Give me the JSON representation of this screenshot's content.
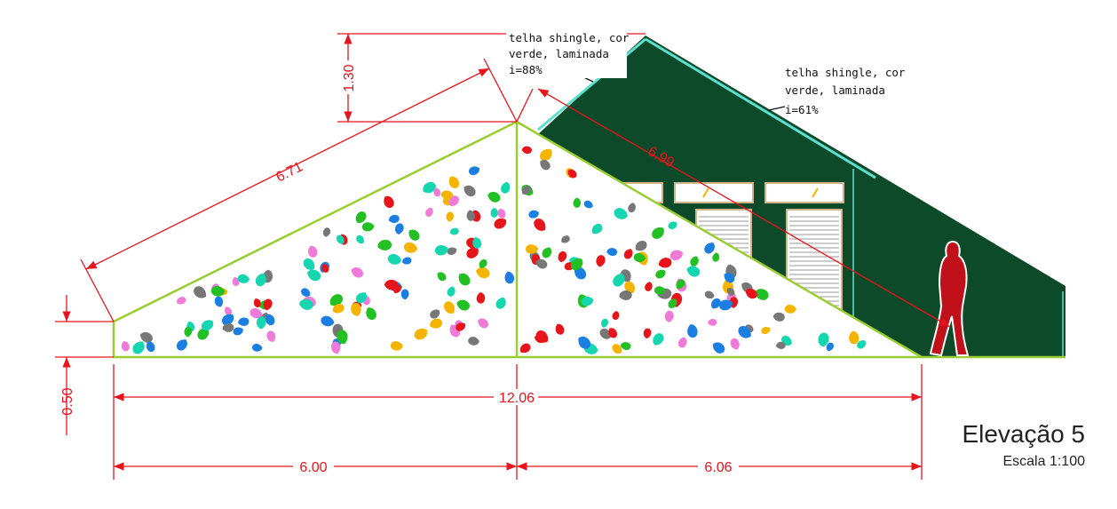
{
  "title": "Elevação 5",
  "scale": "Escala 1:100",
  "notes": {
    "roof_left": {
      "line1": "telha shingle, cor",
      "line2": "verde, laminada",
      "line3": "i=88%"
    },
    "roof_right": {
      "line1": "telha shingle, cor",
      "line2": "verde, laminada",
      "line3": "i=61%"
    }
  },
  "dimensions": {
    "height_top": "1.30",
    "height_base": "0.50",
    "slope_left": "6.71",
    "slope_right": "6.99",
    "total_width": "12.06",
    "width_left": "6.00",
    "width_right": "6.06"
  },
  "colors": {
    "dimension": "#e8141c",
    "roof": "#0d4a2a",
    "outline": "#9acd32",
    "trim": "#5de0d0",
    "window_frame": "#d2b48c"
  },
  "hold_colors": [
    "#e8141c",
    "#777777",
    "#16d6b0",
    "#1a7fe0",
    "#f07ad8",
    "#f5b400",
    "#22c022"
  ]
}
